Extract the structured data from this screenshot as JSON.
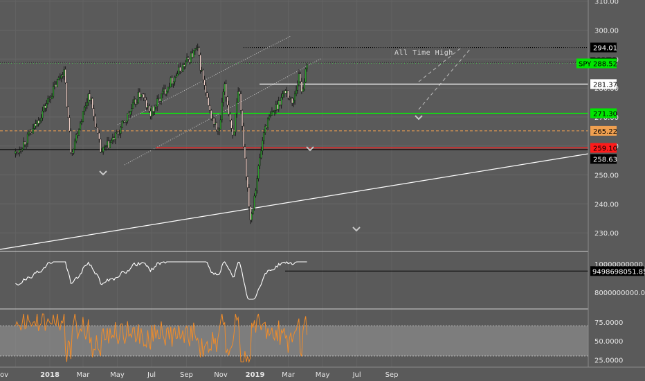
{
  "colors": {
    "background": "#5a5a5a",
    "up": "#2e9e2e",
    "down": "#f0d0c8",
    "indicator_line": "#ffffff",
    "rsi_line": "#f28c28",
    "rsi_band": "#9a9a9a",
    "green_level": "#00ff00",
    "red_level": "#ff1a1a",
    "orange_level": "#f0a050",
    "black_level": "#000000",
    "white_level": "#ffffff"
  },
  "chart_data": {
    "type": "candlestick",
    "symbol": "SPY",
    "x_axis": {
      "ticks": [
        "ov",
        "2018",
        "Mar",
        "May",
        "Jul",
        "Sep",
        "Nov",
        "2019",
        "Mar",
        "May",
        "Jul",
        "Sep"
      ],
      "bold_ticks": [
        "2018",
        "2019"
      ]
    },
    "price_pane": {
      "y_ticks": [
        "310.00",
        "300.00",
        "290.00",
        "280.00",
        "270.00",
        "260.00",
        "250.00",
        "240.00",
        "230.00"
      ],
      "ylim": [
        224,
        311
      ],
      "price_labels": [
        {
          "value": "294.01",
          "style": "black"
        },
        {
          "value": "288.86",
          "style": "black"
        },
        {
          "value": "288.52",
          "style": "green",
          "tag": "SPY"
        },
        {
          "value": "281.37",
          "style": "white"
        },
        {
          "value": "271.30",
          "style": "green"
        },
        {
          "value": "265.22",
          "style": "orange"
        },
        {
          "value": "259.10",
          "style": "red"
        },
        {
          "value": "258.63",
          "style": "black"
        }
      ],
      "annotations": [
        {
          "text": "All Time High"
        }
      ],
      "close_path": [
        [
          "2017-11-01",
          257.4
        ],
        [
          "2017-12-01",
          265.0
        ],
        [
          "2018-01-26",
          286.5
        ],
        [
          "2018-02-08",
          257.6
        ],
        [
          "2018-03-12",
          278.5
        ],
        [
          "2018-04-02",
          257.5
        ],
        [
          "2018-05-01",
          263.9
        ],
        [
          "2018-06-12",
          278.6
        ],
        [
          "2018-06-28",
          270.9
        ],
        [
          "2018-08-01",
          281.5
        ],
        [
          "2018-09-20",
          293.6
        ],
        [
          "2018-10-11",
          272.2
        ],
        [
          "2018-10-29",
          263.9
        ],
        [
          "2018-11-07",
          281.0
        ],
        [
          "2018-11-23",
          263.3
        ],
        [
          "2018-12-03",
          279.3
        ],
        [
          "2018-12-24",
          234.3
        ],
        [
          "2019-01-18",
          266.5
        ],
        [
          "2019-02-25",
          279.5
        ],
        [
          "2019-03-08",
          274.5
        ],
        [
          "2019-03-21",
          284.7
        ],
        [
          "2019-03-25",
          279.0
        ],
        [
          "2019-04-05",
          288.5
        ]
      ]
    },
    "indicator_pane": {
      "y_ticks": [
        "10000000000.0000",
        "8000000000.0000"
      ],
      "last_value": "9498698051.8556"
    },
    "rsi_pane": {
      "y_ticks": [
        "75.0000",
        "50.0000",
        "25.0000"
      ],
      "band": [
        30,
        70
      ]
    }
  }
}
